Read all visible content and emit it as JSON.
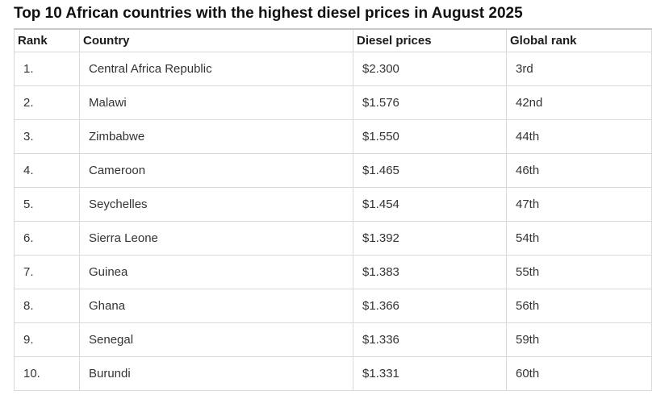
{
  "title": "Top 10 African countries with the highest diesel prices in August 2025",
  "table": {
    "columns": [
      "Rank",
      "Country",
      "Diesel prices",
      "Global rank"
    ],
    "rows": [
      {
        "rank": "1.",
        "country": "Central Africa Republic",
        "price": "$2.300",
        "global_rank": "3rd"
      },
      {
        "rank": "2.",
        "country": "Malawi",
        "price": "$1.576",
        "global_rank": "42nd"
      },
      {
        "rank": "3.",
        "country": "Zimbabwe",
        "price": "$1.550",
        "global_rank": "44th"
      },
      {
        "rank": "4.",
        "country": "Cameroon",
        "price": "$1.465",
        "global_rank": "46th"
      },
      {
        "rank": "5.",
        "country": "Seychelles",
        "price": "$1.454",
        "global_rank": "47th"
      },
      {
        "rank": "6.",
        "country": "Sierra Leone",
        "price": "$1.392",
        "global_rank": "54th"
      },
      {
        "rank": "7.",
        "country": "Guinea",
        "price": "$1.383",
        "global_rank": "55th"
      },
      {
        "rank": "8.",
        "country": "Ghana",
        "price": "$1.366",
        "global_rank": "56th"
      },
      {
        "rank": "9.",
        "country": "Senegal",
        "price": "$1.336",
        "global_rank": "59th"
      },
      {
        "rank": "10.",
        "country": "Burundi",
        "price": "$1.331",
        "global_rank": "60th"
      }
    ]
  },
  "chart_data": {
    "type": "table",
    "title": "Top 10 African countries with the highest diesel prices in August 2025",
    "columns": [
      "Rank",
      "Country",
      "Diesel prices",
      "Global rank"
    ],
    "categories": [
      "Central Africa Republic",
      "Malawi",
      "Zimbabwe",
      "Cameroon",
      "Seychelles",
      "Sierra Leone",
      "Guinea",
      "Ghana",
      "Senegal",
      "Burundi"
    ],
    "diesel_prices_usd": [
      2.3,
      1.576,
      1.55,
      1.465,
      1.454,
      1.392,
      1.383,
      1.366,
      1.336,
      1.331
    ],
    "global_ranks": [
      "3rd",
      "42nd",
      "44th",
      "46th",
      "47th",
      "54th",
      "55th",
      "56th",
      "59th",
      "60th"
    ]
  },
  "colors": {
    "cell_border": "#d9d9d9",
    "table_top_border": "#c9c9c9",
    "header_text": "#1b1b1b",
    "body_text": "#333333",
    "title_text": "#101010",
    "background": "#ffffff"
  }
}
